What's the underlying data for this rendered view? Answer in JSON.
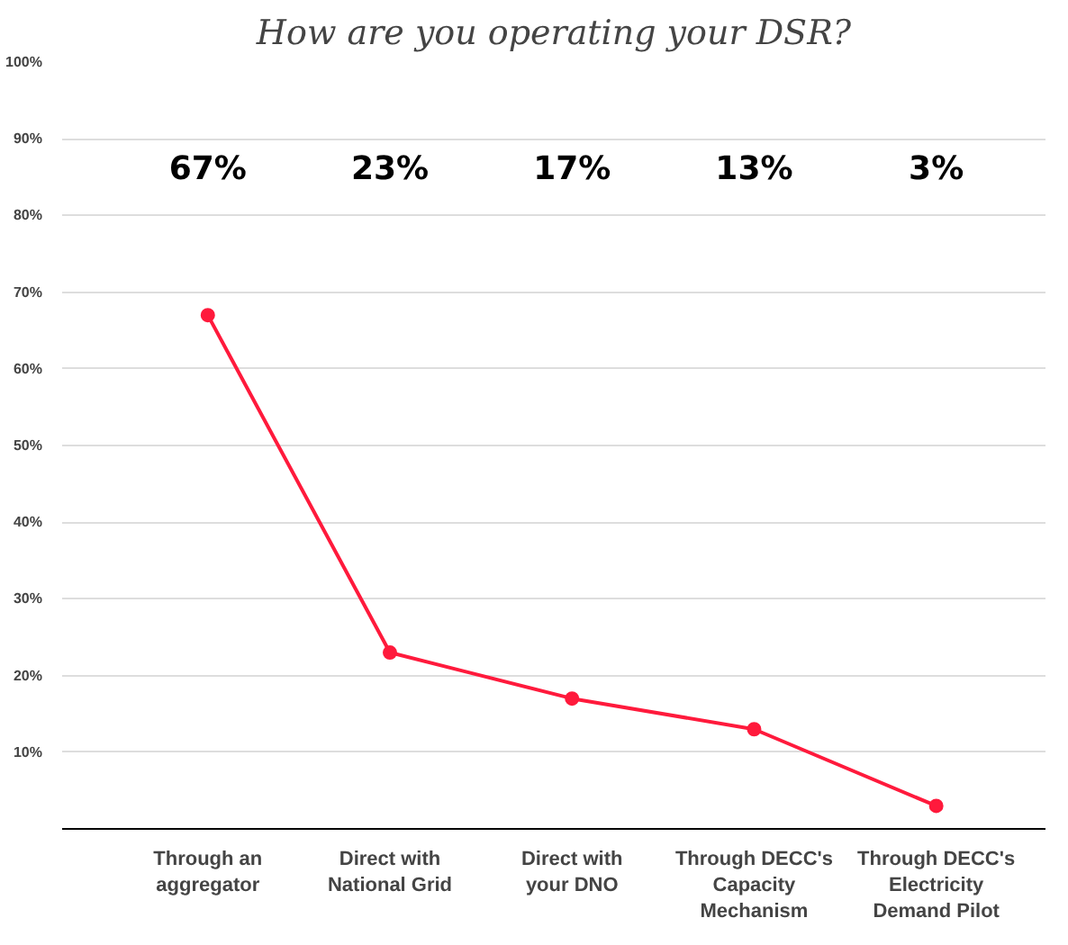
{
  "chart_data": {
    "type": "line",
    "title": "How are you operating your DSR?",
    "categories": [
      "Through an aggregator",
      "Direct with National Grid",
      "Direct with your DNO",
      "Through DECC's Capacity Mechanism",
      "Through DECC's Electricity Demand Pilot"
    ],
    "series": [
      {
        "color": "#ff1a3c",
        "values": [
          67,
          23,
          17,
          13,
          3
        ]
      }
    ],
    "value_labels": [
      "67%",
      "23%",
      "17%",
      "13%",
      "3%"
    ],
    "ylim": [
      0,
      100
    ],
    "yticks": [
      {
        "value": 10,
        "label": "10%"
      },
      {
        "value": 20,
        "label": "20%"
      },
      {
        "value": 30,
        "label": "30%"
      },
      {
        "value": 40,
        "label": "40%"
      },
      {
        "value": 50,
        "label": "50%"
      },
      {
        "value": 60,
        "label": "60%"
      },
      {
        "value": 70,
        "label": "70%"
      },
      {
        "value": 80,
        "label": "80%"
      },
      {
        "value": 90,
        "label": "90%"
      },
      {
        "value": 100,
        "label": "100%"
      }
    ],
    "grid": "y",
    "marker": "circle",
    "line_style": "solid"
  }
}
